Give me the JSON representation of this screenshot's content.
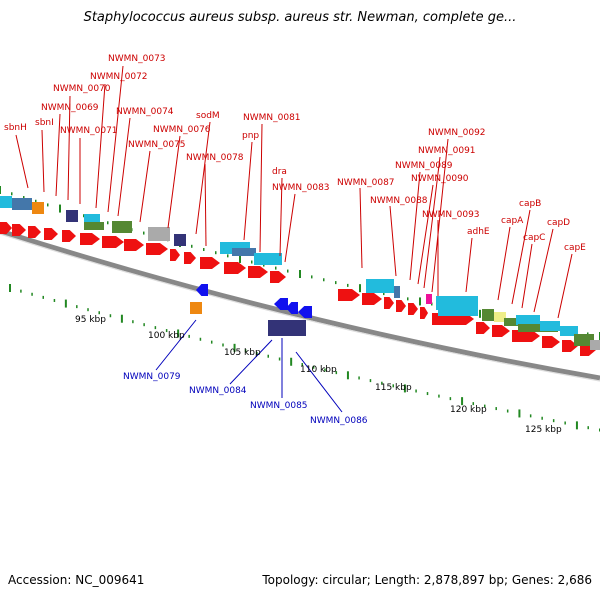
{
  "title": "Staphylococcus aureus subsp. aureus str. Newman, complete ge...",
  "footer": {
    "accession": "Accession: NC_009641",
    "summary": "Topology: circular; Length: 2,878,897 bp; Genes: 2,686"
  },
  "scale_labels": [
    "95 kbp",
    "100 kbp",
    "105 kbp",
    "110 kbp",
    "115 kbp",
    "120 kbp",
    "125 kbp"
  ],
  "top_labels": [
    "sbnH",
    "sbnI",
    "NWMN_0069",
    "NWMN_0070",
    "NWMN_0071",
    "NWMN_0072",
    "NWMN_0073",
    "NWMN_0074",
    "NWMN_0075",
    "NWMN_0076",
    "sodM",
    "pnp",
    "NWMN_0078",
    "NWMN_0081",
    "dra",
    "NWMN_0083",
    "NWMN_0087",
    "NWMN_0088",
    "NWMN_0089",
    "NWMN_0090",
    "NWMN_0091",
    "NWMN_0092",
    "NWMN_0093",
    "adhE",
    "capA",
    "capB",
    "capC",
    "capD",
    "capE"
  ],
  "bottom_labels": [
    "NWMN_0079",
    "NWMN_0084",
    "NWMN_0085",
    "NWMN_0086"
  ],
  "colors": {
    "forward_label": "#cc0000",
    "reverse_label": "#0000bb",
    "forward_gene": "#ee1111",
    "reverse_gene": "#1111ee",
    "tick": "#228822",
    "backbone": "#888888"
  },
  "feature_colors": [
    "#22bbdd",
    "#66cccc",
    "#558833",
    "#aaaaaa",
    "#333377",
    "#ee8811",
    "#ee1199",
    "#eeee88",
    "#4477aa"
  ]
}
